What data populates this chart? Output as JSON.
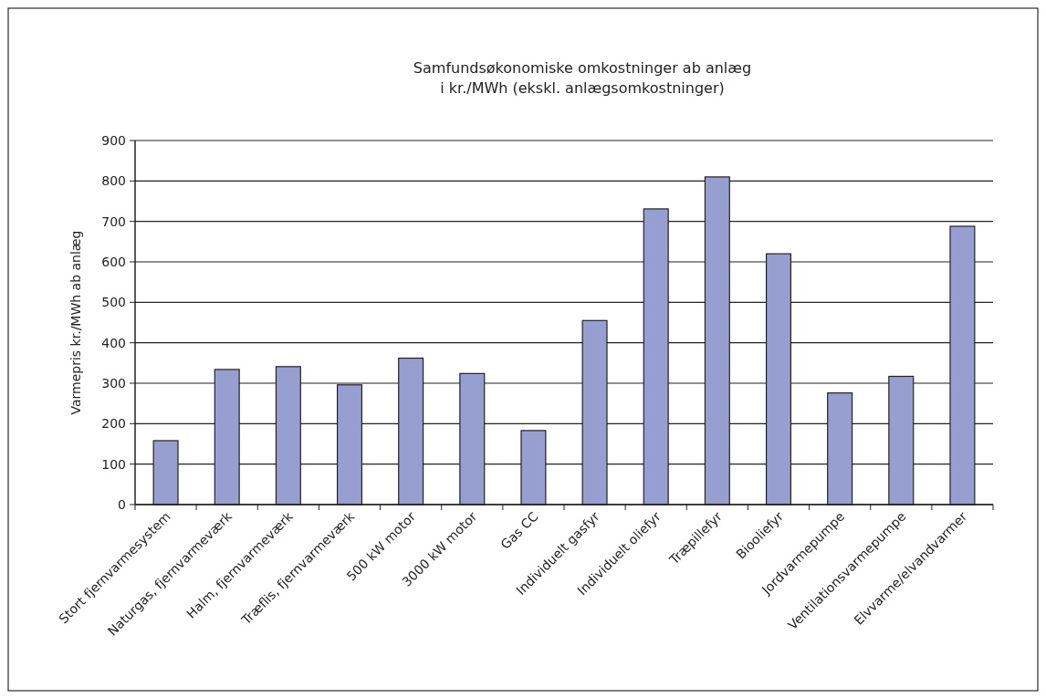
{
  "chart_data": {
    "type": "bar",
    "title": "Samfundsøkonomiske omkostninger ab anlæg\ni kr./MWh (ekskl. anlægsomkostninger)",
    "ylabel": "Varmepris kr./MWh ab anlæg",
    "categories": [
      "Stort fjernvarmesystem",
      "Naturgas, fjernvarmeværk",
      "Halm, fjernvarmeværk",
      "Træflis, fjernvarmeværk",
      "500 kW motor",
      "3000 kW motor",
      "Gas CC",
      "Individuelt gasfyr",
      "Individuelt oliefyr",
      "Træpillefyr",
      "Biooliefyr",
      "Jordvarmepumpe",
      "Ventilationsvarmepumpe",
      "Elvvarme/elvandvarmer"
    ],
    "values": [
      158,
      334,
      341,
      296,
      362,
      324,
      183,
      455,
      731,
      810,
      620,
      276,
      317,
      688
    ],
    "color": "#969fd0",
    "ylim": [
      0,
      900
    ],
    "yticks": [
      0,
      100,
      200,
      300,
      400,
      500,
      600,
      700,
      800,
      900
    ],
    "grid": "y"
  }
}
